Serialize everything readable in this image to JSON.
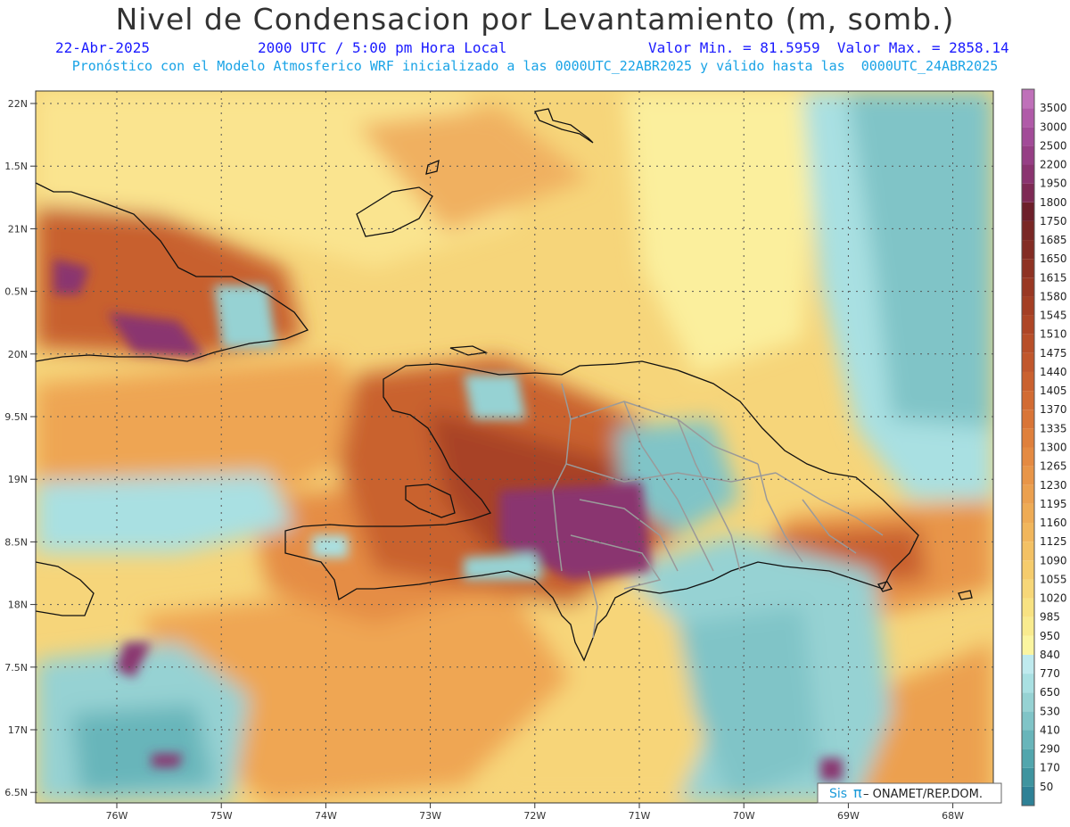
{
  "header": {
    "title": "Nivel de Condensacion por Levantamiento (m, somb.)",
    "date": "22-Abr-2025",
    "time": "2000 UTC / 5:00 pm Hora Local",
    "minmax": "Valor Min. = 81.5959  Valor Max. = 2858.14",
    "forecast": "Pronóstico con el Modelo Atmosferico WRF inicializado a las 0000UTC_22ABR2025 y válido hasta las  0000UTC_24ABR2025"
  },
  "map": {
    "lat_labels": [
      "22N",
      "1.5N",
      "21N",
      "0.5N",
      "20N",
      "9.5N",
      "19N",
      "8.5N",
      "18N",
      "7.5N",
      "17N",
      "6.5N"
    ],
    "lon_labels": [
      "76W",
      "75W",
      "74W",
      "73W",
      "72W",
      "71W",
      "70W",
      "69W",
      "68W"
    ],
    "credit_sis": "Sis",
    "credit_pi": "π",
    "credit_rest": " – ONAMET/REP.DOM."
  },
  "legend": {
    "levels": [
      "50",
      "170",
      "290",
      "410",
      "530",
      "650",
      "770",
      "840",
      "950",
      "985",
      "1020",
      "1055",
      "1090",
      "1125",
      "1160",
      "1195",
      "1230",
      "1265",
      "1300",
      "1335",
      "1370",
      "1405",
      "1440",
      "1475",
      "1510",
      "1545",
      "1580",
      "1615",
      "1650",
      "1685",
      "1750",
      "1800",
      "1950",
      "2200",
      "2500",
      "3000",
      "3500"
    ],
    "colors": [
      "#2e8196",
      "#3f949f",
      "#52a6ad",
      "#68b5ba",
      "#80c4c7",
      "#96d2d3",
      "#a9e0e2",
      "#bfeaee",
      "#fbf5a0",
      "#f9eb8e",
      "#f8e282",
      "#f7d778",
      "#f5cc6d",
      "#f3c164",
      "#f1b65c",
      "#eeab55",
      "#eba04f",
      "#e89548",
      "#e48a42",
      "#df803c",
      "#d97537",
      "#d26b33",
      "#ca612f",
      "#c1572c",
      "#b84f29",
      "#ae4626",
      "#a43f24",
      "#993823",
      "#8e3223",
      "#832c24",
      "#792725",
      "#6d1f2a",
      "#7e2a55",
      "#8a3470",
      "#963f85",
      "#a24b98",
      "#b05aa8",
      "#bf70b9"
    ],
    "colors_meaning": "shading from lowest (teal) to highest (purple)"
  }
}
